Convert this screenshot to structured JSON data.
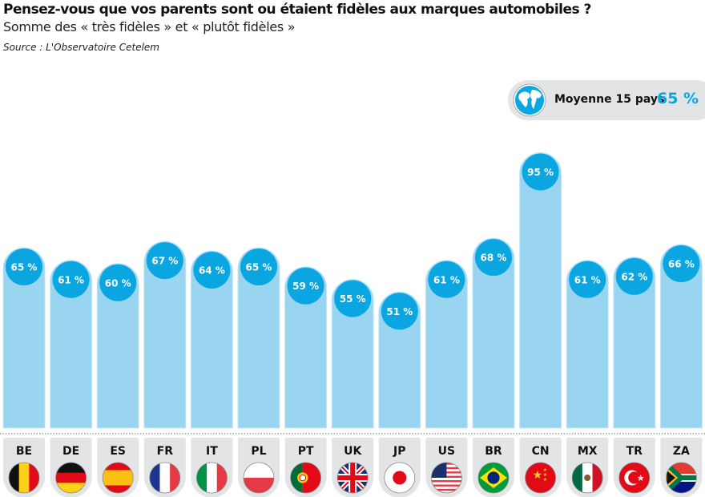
{
  "title": "Pensez-vous que vos parents sont ou étaient fidèles aux marques automobiles ?",
  "subtitle": "Somme des « très fidèles » et « plutôt fidèles »",
  "source": "Source : L'Observatoire Cetelem",
  "average": {
    "label": "Moyenne 15 pays",
    "value": "65 %",
    "icon": "globe-icon"
  },
  "colors": {
    "bar": "#99d5f0",
    "bubble": "#0aa6e2",
    "label_bg": "#e3e4e6",
    "accent": "#0aa6e2"
  },
  "chart_data": {
    "type": "bar",
    "title": "Pensez-vous que vos parents sont ou étaient fidèles aux marques automobiles ?",
    "categories": [
      "BE",
      "DE",
      "ES",
      "FR",
      "IT",
      "PL",
      "PT",
      "UK",
      "JP",
      "US",
      "BR",
      "CN",
      "MX",
      "TR",
      "ZA"
    ],
    "values": [
      65,
      61,
      60,
      67,
      64,
      65,
      59,
      55,
      51,
      61,
      68,
      95,
      61,
      62,
      66
    ],
    "labels": [
      "65 %",
      "61 %",
      "60 %",
      "67 %",
      "64 %",
      "65 %",
      "59 %",
      "55 %",
      "51 %",
      "61 %",
      "68 %",
      "95 %",
      "61 %",
      "62 %",
      "66 %"
    ],
    "unit": "%",
    "average": 65,
    "grid": false,
    "legend": "none"
  }
}
